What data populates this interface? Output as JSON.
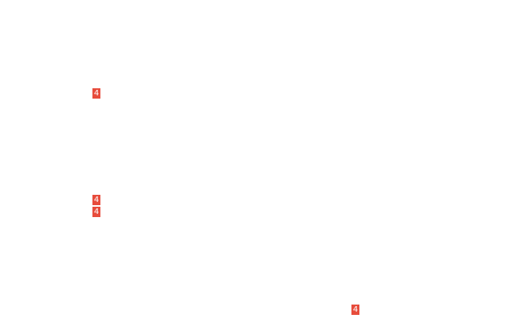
{
  "page": {
    "background_color": "#ffffff"
  },
  "colors": {
    "badge_background": "#e74c3c",
    "badge_text": "#ffffff"
  },
  "badges": [
    {
      "label": "4"
    },
    {
      "label": "4"
    },
    {
      "label": "4"
    },
    {
      "label": "4"
    }
  ]
}
